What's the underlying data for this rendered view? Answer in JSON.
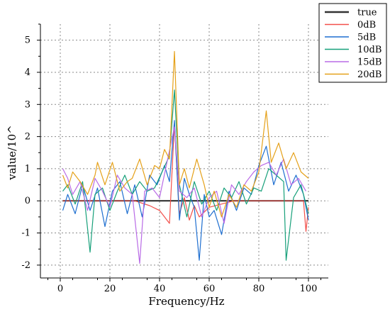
{
  "chart_data": {
    "type": "line",
    "title": "",
    "xlabel": "Frequency/Hz",
    "ylabel": "value/10^",
    "xlim": [
      -8,
      108
    ],
    "ylim": [
      -2.4,
      5.5
    ],
    "xticks": [
      0,
      20,
      40,
      60,
      80,
      100
    ],
    "yticks": [
      -2,
      -1,
      0,
      1,
      2,
      3,
      4,
      5
    ],
    "grid": true,
    "legend_position": "top-right-outside",
    "series": [
      {
        "name": "true",
        "color": "#333333",
        "points": [
          [
            1,
            0
          ],
          [
            100,
            0
          ]
        ]
      },
      {
        "name": "0dB",
        "color": "#f2504b",
        "points": [
          [
            1,
            0
          ],
          [
            30,
            0
          ],
          [
            36,
            -0.15
          ],
          [
            40,
            -0.3
          ],
          [
            44,
            -0.7
          ],
          [
            46,
            2.4
          ],
          [
            48,
            -0.4
          ],
          [
            50,
            0.1
          ],
          [
            52,
            -0.6
          ],
          [
            54,
            -0.15
          ],
          [
            56,
            -0.5
          ],
          [
            60,
            -0.2
          ],
          [
            70,
            0
          ],
          [
            80,
            0
          ],
          [
            85,
            0
          ],
          [
            90,
            0
          ],
          [
            95,
            0
          ],
          [
            98,
            0
          ],
          [
            99,
            -0.95
          ],
          [
            100,
            -0.2
          ]
        ]
      },
      {
        "name": "5dB",
        "color": "#1f6fd0",
        "points": [
          [
            1,
            -0.3
          ],
          [
            3,
            0.2
          ],
          [
            6,
            -0.4
          ],
          [
            9,
            0.5
          ],
          [
            12,
            -0.3
          ],
          [
            15,
            0.4
          ],
          [
            18,
            -0.8
          ],
          [
            21,
            0.3
          ],
          [
            24,
            0.6
          ],
          [
            27,
            -0.4
          ],
          [
            30,
            0.5
          ],
          [
            33,
            -0.5
          ],
          [
            36,
            0.8
          ],
          [
            39,
            0.5
          ],
          [
            42,
            1.1
          ],
          [
            44,
            0.6
          ],
          [
            46,
            2.5
          ],
          [
            48,
            -0.6
          ],
          [
            50,
            0.7
          ],
          [
            52,
            0.2
          ],
          [
            54,
            -0.2
          ],
          [
            56,
            -1.85
          ],
          [
            58,
            0.2
          ],
          [
            60,
            -0.5
          ],
          [
            62,
            -0.3
          ],
          [
            65,
            -1.05
          ],
          [
            68,
            0.3
          ],
          [
            71,
            -0.3
          ],
          [
            74,
            0.4
          ],
          [
            77,
            0.2
          ],
          [
            80,
            1.1
          ],
          [
            83,
            1.7
          ],
          [
            86,
            0.5
          ],
          [
            89,
            1.2
          ],
          [
            92,
            0.3
          ],
          [
            95,
            0.8
          ],
          [
            98,
            0.2
          ],
          [
            100,
            -0.6
          ]
        ]
      },
      {
        "name": "10dB",
        "color": "#17a07a",
        "points": [
          [
            1,
            0.3
          ],
          [
            3,
            0.5
          ],
          [
            6,
            -0.1
          ],
          [
            9,
            0.6
          ],
          [
            12,
            -1.6
          ],
          [
            14,
            0.2
          ],
          [
            17,
            0.4
          ],
          [
            20,
            -0.3
          ],
          [
            23,
            0.3
          ],
          [
            26,
            0.8
          ],
          [
            29,
            0.2
          ],
          [
            32,
            0.6
          ],
          [
            35,
            0.3
          ],
          [
            38,
            0.4
          ],
          [
            41,
            0.9
          ],
          [
            44,
            1.4
          ],
          [
            46,
            3.45
          ],
          [
            48,
            0.5
          ],
          [
            51,
            -0.5
          ],
          [
            54,
            0.6
          ],
          [
            57,
            -0.1
          ],
          [
            60,
            0.3
          ],
          [
            63,
            -0.3
          ],
          [
            66,
            0.4
          ],
          [
            69,
            0.1
          ],
          [
            72,
            0.6
          ],
          [
            75,
            -0.1
          ],
          [
            78,
            0.4
          ],
          [
            81,
            0.3
          ],
          [
            84,
            1.0
          ],
          [
            87,
            0.8
          ],
          [
            90,
            0.6
          ],
          [
            91,
            -1.85
          ],
          [
            94,
            0.1
          ],
          [
            97,
            0.5
          ],
          [
            100,
            -0.4
          ]
        ]
      },
      {
        "name": "15dB",
        "color": "#b96be6",
        "points": [
          [
            1,
            1.0
          ],
          [
            3,
            0.7
          ],
          [
            5,
            0.2
          ],
          [
            8,
            0.6
          ],
          [
            11,
            -0.3
          ],
          [
            14,
            0.7
          ],
          [
            17,
            0.3
          ],
          [
            20,
            -0.2
          ],
          [
            23,
            0.8
          ],
          [
            26,
            0.4
          ],
          [
            29,
            0.2
          ],
          [
            32,
            -1.95
          ],
          [
            34,
            0.3
          ],
          [
            37,
            0.4
          ],
          [
            40,
            0.1
          ],
          [
            43,
            1.2
          ],
          [
            46,
            2.3
          ],
          [
            48,
            0.3
          ],
          [
            51,
            0.1
          ],
          [
            54,
            0.4
          ],
          [
            57,
            -0.5
          ],
          [
            60,
            0.1
          ],
          [
            63,
            0.3
          ],
          [
            66,
            -0.7
          ],
          [
            69,
            0.5
          ],
          [
            72,
            0.2
          ],
          [
            75,
            0.6
          ],
          [
            78,
            0.9
          ],
          [
            81,
            1.1
          ],
          [
            84,
            1.2
          ],
          [
            87,
            0.8
          ],
          [
            90,
            1.3
          ],
          [
            93,
            0.5
          ],
          [
            96,
            0.7
          ],
          [
            99,
            0.3
          ]
        ]
      },
      {
        "name": "20dB",
        "color": "#e5a11a",
        "points": [
          [
            1,
            0.8
          ],
          [
            3,
            0.4
          ],
          [
            5,
            0.9
          ],
          [
            8,
            0.6
          ],
          [
            11,
            0.2
          ],
          [
            14,
            0.8
          ],
          [
            15,
            1.2
          ],
          [
            18,
            0.5
          ],
          [
            21,
            1.2
          ],
          [
            24,
            0.3
          ],
          [
            27,
            0.6
          ],
          [
            29,
            0.7
          ],
          [
            32,
            1.3
          ],
          [
            35,
            0.5
          ],
          [
            38,
            1.1
          ],
          [
            40,
            1.0
          ],
          [
            42,
            1.6
          ],
          [
            44,
            1.3
          ],
          [
            46,
            4.65
          ],
          [
            48,
            0.5
          ],
          [
            50,
            1.0
          ],
          [
            52,
            0.4
          ],
          [
            55,
            1.3
          ],
          [
            58,
            0.5
          ],
          [
            60,
            -0.2
          ],
          [
            62,
            0.3
          ],
          [
            65,
            -0.5
          ],
          [
            68,
            0.2
          ],
          [
            71,
            -0.2
          ],
          [
            74,
            0.5
          ],
          [
            77,
            0.3
          ],
          [
            80,
            0.9
          ],
          [
            83,
            2.8
          ],
          [
            85,
            1.2
          ],
          [
            88,
            1.8
          ],
          [
            91,
            1.0
          ],
          [
            94,
            1.5
          ],
          [
            97,
            0.9
          ],
          [
            100,
            0.7
          ]
        ]
      }
    ]
  }
}
